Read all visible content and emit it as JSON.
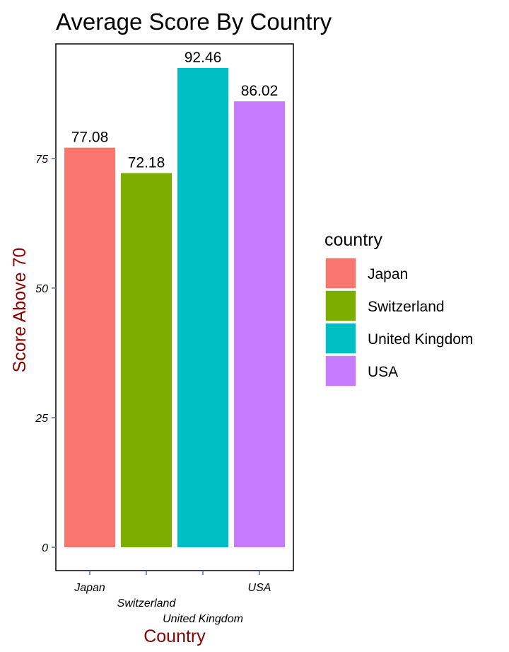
{
  "chart_data": {
    "type": "bar",
    "title": "Average Score By Country",
    "xlabel": "Country",
    "ylabel": "Score Above 70",
    "categories": [
      "Japan",
      "Switzerland",
      "United Kingdom",
      "USA"
    ],
    "values": [
      77.08,
      72.18,
      92.46,
      86.02
    ],
    "data_labels": [
      "77.08",
      "72.18",
      "92.46",
      "86.02"
    ],
    "colors": [
      "#F8766D",
      "#7CAE00",
      "#00BFC4",
      "#C77CFF"
    ],
    "y_ticks": [
      0,
      25,
      50,
      75
    ],
    "y_tick_labels": [
      "0",
      "25",
      "50",
      "75"
    ],
    "ylim": [
      -4.5,
      97.1
    ],
    "grid": false,
    "axis_title_color": "#8B0000",
    "axis_tick_color": "#4F6FA8",
    "legend": {
      "title": "country",
      "position": "right",
      "entries": [
        "Japan",
        "Switzerland",
        "United Kingdom",
        "USA"
      ]
    }
  }
}
